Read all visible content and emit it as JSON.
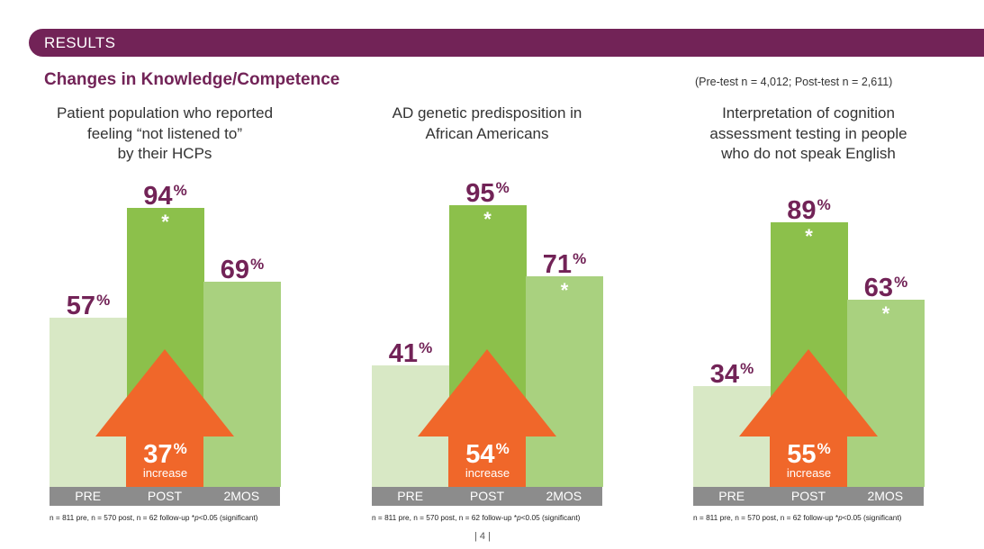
{
  "header": {
    "banner": "RESULTS",
    "section_title": "Changes in Knowledge/Competence",
    "sample_note": "(Pre-test n = 4,012; Post-test n = 2,611)"
  },
  "colors": {
    "brand": "#722357",
    "pre": "#d8e8c5",
    "post": "#8cc04b",
    "follow_up": "#a9d17f",
    "arrow": "#f0672a",
    "strip": "#8c8c8c"
  },
  "chart_data": [
    {
      "type": "bar",
      "title": "Patient population who reported feeling “not listened to” by their HCPs",
      "title_lines": [
        "Patient population who reported",
        "feeling “not listened to”",
        "by their HCPs"
      ],
      "categories": [
        "PRE",
        "POST",
        "2MOS"
      ],
      "values": [
        57,
        94,
        69
      ],
      "unit": "%",
      "significant": [
        false,
        true,
        false
      ],
      "increase": 37,
      "increase_label": "increase",
      "footnote_a": "n = 811 pre, n = 570 post, n = 62 follow-up *",
      "footnote_p": "p",
      "footnote_b": "<0.05 (significant)"
    },
    {
      "type": "bar",
      "title": "AD genetic predisposition in African Americans",
      "title_lines": [
        "AD genetic predisposition in",
        "African Americans"
      ],
      "categories": [
        "PRE",
        "POST",
        "2MOS"
      ],
      "values": [
        41,
        95,
        71
      ],
      "unit": "%",
      "significant": [
        false,
        true,
        true
      ],
      "increase": 54,
      "increase_label": "increase",
      "footnote_a": "n = 811 pre, n = 570 post, n = 62 follow-up *",
      "footnote_p": "p",
      "footnote_b": "<0.05 (significant)"
    },
    {
      "type": "bar",
      "title": "Interpretation of cognition assessment testing in people who do not speak English",
      "title_lines": [
        "Interpretation of cognition",
        "assessment testing in people",
        "who do not speak English"
      ],
      "categories": [
        "PRE",
        "POST",
        "2MOS"
      ],
      "values": [
        34,
        89,
        63
      ],
      "unit": "%",
      "significant": [
        false,
        true,
        true
      ],
      "increase": 55,
      "increase_label": "increase",
      "footnote_a": "n = 811 pre, n = 570 post, n = 62 follow-up *",
      "footnote_p": "p",
      "footnote_b": "<0.05 (significant)"
    }
  ],
  "footer": {
    "page_number": "|  4  |"
  }
}
